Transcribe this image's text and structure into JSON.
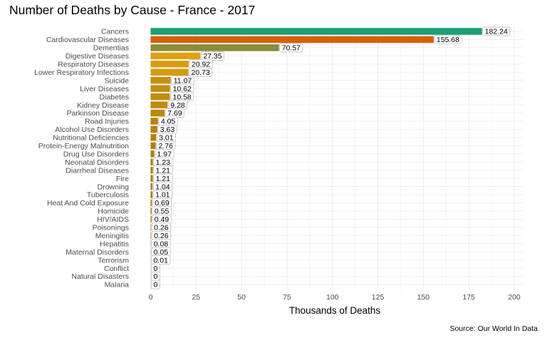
{
  "chart_data": {
    "type": "bar",
    "orientation": "horizontal",
    "title": "Number of Deaths by Cause - France - 2017",
    "xlabel": "Thousands of Deaths",
    "ylabel": "",
    "source": "Source: Our World In Data",
    "xlim": [
      0,
      205
    ],
    "xticks": [
      0,
      25,
      50,
      75,
      100,
      125,
      150,
      175,
      200
    ],
    "grid": true,
    "legend": "none",
    "categories": [
      "Cancers",
      "Cardiovascular Diseases",
      "Dementias",
      "Digestive Diseases",
      "Respiratory Diseases",
      "Lower Respiratory Infections",
      "Suicide",
      "Liver Diseases",
      "Diabetes",
      "Kidney Disease",
      "Parkinson Disease",
      "Road Injuries",
      "Alcohol Use Disorders",
      "Nutritional Deficiencies",
      "Protein-Energy Malnutrition",
      "Drug Use Disorders",
      "Neonatal Disorders",
      "Diarrheal Diseases",
      "Fire",
      "Drowning",
      "Tuberculosis",
      "Heat And Cold Exposure",
      "Homicide",
      "HIV/AIDS",
      "Poisonings",
      "Meningitis",
      "Hepatitis",
      "Maternal Disorders",
      "Terrorism",
      "Conflict",
      "Natural Disasters",
      "Malaria"
    ],
    "values": [
      182.24,
      155.68,
      70.57,
      27.35,
      20.92,
      20.73,
      11.07,
      10.62,
      10.58,
      9.28,
      7.69,
      4.05,
      3.63,
      3.01,
      2.76,
      1.97,
      1.23,
      1.21,
      1.21,
      1.04,
      1.01,
      0.69,
      0.55,
      0.49,
      0.26,
      0.26,
      0.08,
      0.05,
      0.01,
      0,
      0,
      0
    ],
    "data_labels": [
      "182.24",
      "155.68",
      "70.57",
      "27.35",
      "20.92",
      "20.73",
      "11.07",
      "10.62",
      "10.58",
      "9.28",
      "7.69",
      "4.05",
      "3.63",
      "3.01",
      "2.76",
      "1.97",
      "1.23",
      "1.21",
      "1.21",
      "1.04",
      "1.01",
      "0.69",
      "0.55",
      "0.49",
      "0.26",
      "0.26",
      "0.08",
      "0.05",
      "0.01",
      "0",
      "0",
      "0"
    ],
    "colors": [
      "#1b9e77",
      "#d95f02",
      "#8b8b3a",
      "#e0a012",
      "#d99e12",
      "#d69c11",
      "#c8900f",
      "#c58d0f",
      "#c38c0e",
      "#c08a0e",
      "#bd870e",
      "#b8840d",
      "#b6820d",
      "#b4810d",
      "#b3800d",
      "#b17f0d",
      "#b07e0d",
      "#af7d0d",
      "#af7d0d",
      "#ae7c0c",
      "#ae7c0c",
      "#ad7b0c",
      "#ad7b0c",
      "#ac7a0c",
      "#ac7a0c",
      "#ac7a0c",
      "#ab7a0c",
      "#ab7a0c",
      "#ab7a0c",
      "#ab7a0c",
      "#ab7a0c",
      "#ab7a0c"
    ]
  }
}
